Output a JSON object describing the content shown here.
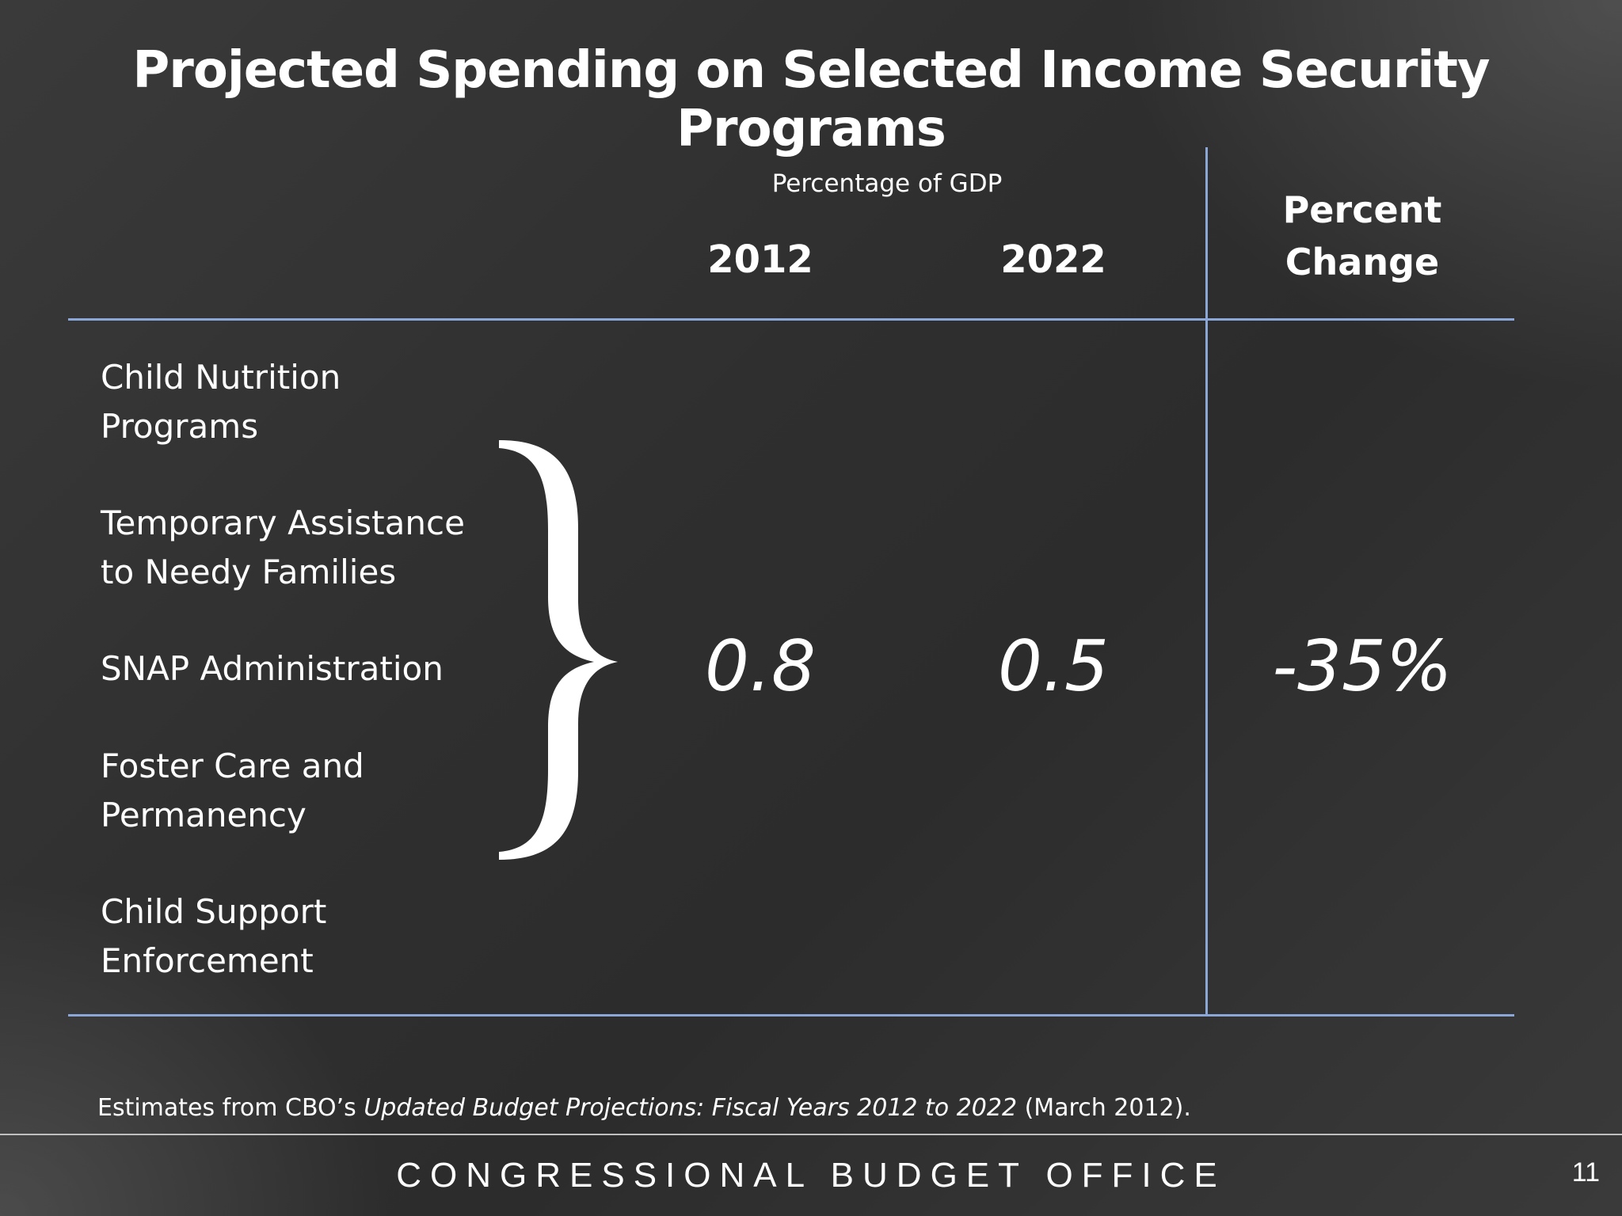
{
  "slide": {
    "title": "Projected Spending on Selected Income Security Programs",
    "page_number": "11"
  },
  "table": {
    "group_header": "Percentage of GDP",
    "columns": {
      "year1": "2012",
      "year2": "2022",
      "change_line1": "Percent",
      "change_line2": "Change"
    },
    "programs": [
      {
        "line1": "Child Nutrition",
        "line2": "Programs"
      },
      {
        "line1": "Temporary Assistance",
        "line2": "to Needy Families"
      },
      {
        "line1": "SNAP Administration",
        "line2": ""
      },
      {
        "line1": "Foster Care and",
        "line2": "Permanency"
      },
      {
        "line1": "Child Support",
        "line2": "Enforcement"
      }
    ],
    "values": {
      "year1": "0.8",
      "year2": "0.5",
      "change": "-35%"
    }
  },
  "source": {
    "prefix": "Estimates from CBO’s ",
    "publication": "Updated Budget Projections: Fiscal Years 2012 to 2022",
    "suffix": " (March 2012)."
  },
  "footer": {
    "organization": "CONGRESSIONAL BUDGET OFFICE"
  },
  "colors": {
    "rule": "#8aa7d8",
    "text": "#ffffff",
    "background": "#2e2e2e"
  }
}
